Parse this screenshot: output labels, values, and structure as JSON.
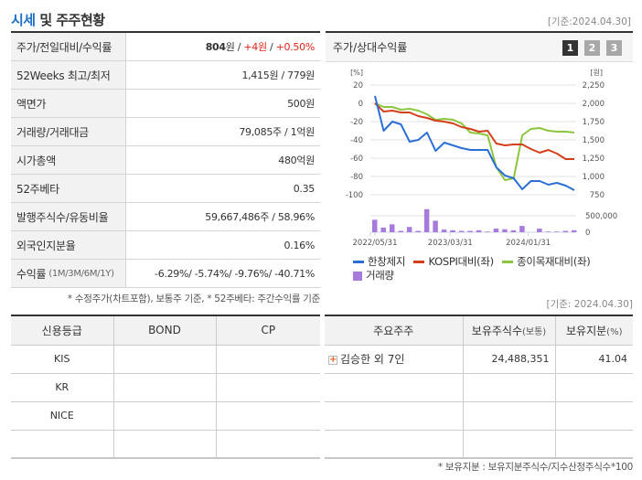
{
  "header": {
    "title_highlight": "시세",
    "title_rest": " 및 주주현황",
    "as_of": "[기준:2024.04.30]"
  },
  "info_table": {
    "rows": [
      {
        "label": "주가/전일대비/수익률",
        "price": "804",
        "price_unit": "원 / ",
        "change": "+4원",
        "sep": " / ",
        "pct": "+0.50%"
      },
      {
        "label": "52Weeks 최고/최저",
        "value": "1,415원 / 779원"
      },
      {
        "label": "액면가",
        "value": "500원"
      },
      {
        "label": "거래량/거래대금",
        "value": "79,085주 / 1억원"
      },
      {
        "label": "시가총액",
        "value": "480억원"
      },
      {
        "label": "52주베타",
        "value": "0.35"
      },
      {
        "label": "발행주식수/유동비율",
        "value": "59,667,486주 / 58.96%"
      },
      {
        "label": "외국인지분율",
        "value": "0.16%"
      },
      {
        "label": "수익률",
        "label_sub": "(1M/3M/6M/1Y)",
        "value": "-6.29%/ -5.74%/ -9.76%/ -40.71%"
      }
    ],
    "note": "* 수정주가(차트포함), 보통주 기준, * 52주베타: 주간수익률 기준"
  },
  "chart_panel": {
    "title": "주가/상대수익률",
    "tabs": [
      "1",
      "2",
      "3"
    ],
    "active_tab": "1"
  },
  "chart_data": {
    "type": "line",
    "title": "주가/상대수익률",
    "left_axis": {
      "label": "[%]",
      "ticks": [
        20,
        0,
        -20,
        -40,
        -60,
        -80,
        -100
      ],
      "range": [
        -100,
        20
      ]
    },
    "right_axis": {
      "label": "[원]",
      "ticks": [
        "2,250",
        "2,000",
        "1,750",
        "1,500",
        "1,250",
        "1,000",
        "750"
      ],
      "range": [
        750,
        2250
      ]
    },
    "volume_axis": {
      "ticks": [
        "500,000",
        "0"
      ],
      "range": [
        0,
        500000
      ]
    },
    "x_ticks": [
      "2022/05/31",
      "2023/03/31",
      "2024/01/31"
    ],
    "grid": true,
    "legend_position": "bottom",
    "series": [
      {
        "name": "한창제지",
        "color": "#2b6fd6",
        "axis": "left",
        "values": [
          8,
          -30,
          -20,
          -23,
          -42,
          -40,
          -32,
          -52,
          -43,
          -46,
          -49,
          -51,
          -51,
          -51,
          -70,
          -79,
          -82,
          -94,
          -85,
          -85,
          -89,
          -87,
          -90,
          -95
        ]
      },
      {
        "name": "KOSPI대비(좌)",
        "color": "#d23f1a",
        "axis": "left",
        "values": [
          0,
          -9,
          -8,
          -10,
          -10,
          -14,
          -16,
          -19,
          -20,
          -22,
          -26,
          -28,
          -31,
          -30,
          -44,
          -46,
          -45,
          -45,
          -50,
          -54,
          -51,
          -55,
          -61,
          -61
        ]
      },
      {
        "name": "종이목재대비(좌)",
        "color": "#8cc63e",
        "axis": "left",
        "values": [
          0,
          -4,
          -4,
          -7,
          -6,
          -8,
          -12,
          -18,
          -17,
          -18,
          -22,
          -32,
          -33,
          -35,
          -70,
          -84,
          -82,
          -35,
          -28,
          -27,
          -30,
          -31,
          -31,
          -32
        ]
      },
      {
        "name": "거래량",
        "color": "#a77bdc",
        "type": "bar",
        "axis": "volume",
        "values": [
          380000,
          140000,
          240000,
          40000,
          160000,
          40000,
          700000,
          350000,
          80000,
          60000,
          40000,
          40000,
          60000,
          20000,
          110000,
          90000,
          60000,
          190000,
          0,
          110000,
          20000,
          20000,
          40000,
          60000
        ]
      }
    ]
  },
  "legend": {
    "items": [
      "한창제지",
      "KOSPI대비(좌)",
      "종이목재대비(좌)",
      "거래량"
    ]
  },
  "credit_table": {
    "headers": [
      "신용등급",
      "BOND",
      "CP"
    ],
    "rows": [
      [
        "KIS",
        "",
        ""
      ],
      [
        "KR",
        "",
        ""
      ],
      [
        "NICE",
        "",
        ""
      ],
      [
        "",
        "",
        ""
      ]
    ]
  },
  "shareholder_table": {
    "as_of": "[기준: 2024.04.30]",
    "headers": {
      "name": "주요주주",
      "shares": "보유주식수",
      "shares_sub": "(보통)",
      "pct": "보유지분",
      "pct_sub": "(%)"
    },
    "rows": [
      {
        "name": "김승한 외 7인",
        "shares": "24,488,351",
        "pct": "41.04"
      },
      {
        "name": "",
        "shares": "",
        "pct": ""
      },
      {
        "name": "",
        "shares": "",
        "pct": ""
      },
      {
        "name": "",
        "shares": "",
        "pct": ""
      }
    ],
    "note": "* 보유지분 : 보유지분주식수/지수산정주식수*100"
  }
}
